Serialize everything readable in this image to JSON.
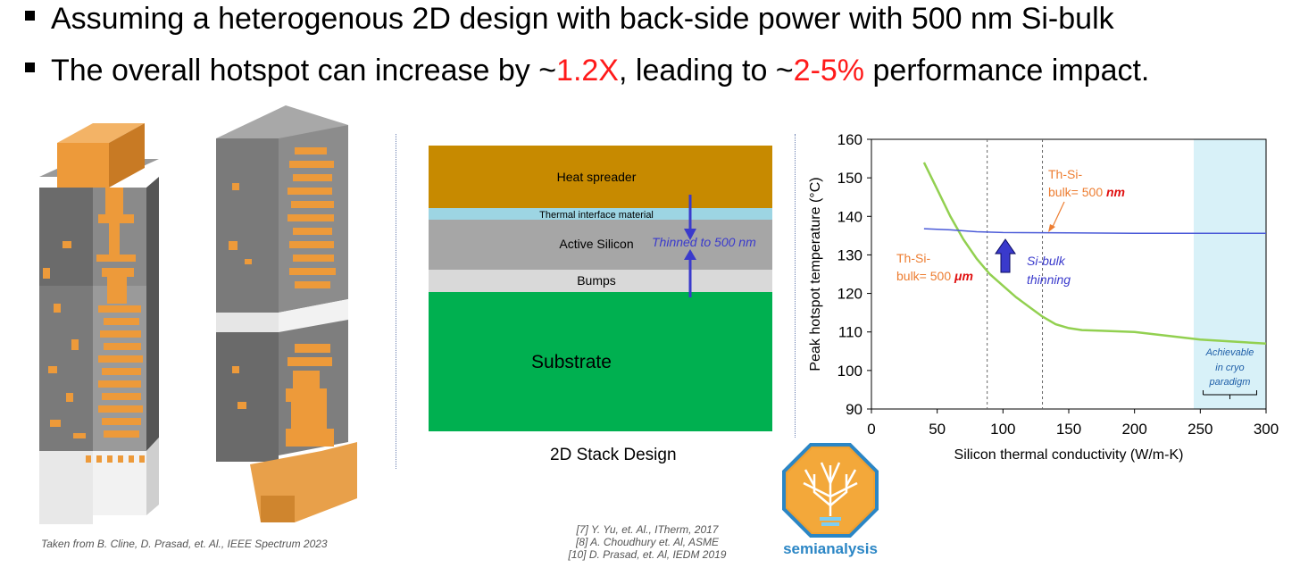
{
  "bullets": {
    "b1": "Assuming a heterogenous 2D design with back-side power with 500 nm Si-bulk",
    "b2_pre": "The overall hotspot can increase by ~",
    "b2_v1": "1.2X",
    "b2_mid": ", leading to ~",
    "b2_v2": "2-5%",
    "b2_post": " performance impact."
  },
  "left_figure": {
    "caption": "Taken from B. Cline, D. Prasad, et. Al., IEEE Spectrum 2023"
  },
  "stack": {
    "layers": {
      "heat_spreader": "Heat spreader",
      "tim": "Thermal interface material",
      "active_silicon": "Active Silicon",
      "bumps": "Bumps",
      "substrate": "Substrate"
    },
    "thinned_label": "Thinned to 500 nm",
    "caption": "2D Stack Design"
  },
  "references": [
    "[7] Y. Yu, et. Al., ITherm, 2017",
    "[8] A. Choudhury et. Al, ASME",
    "[10] D. Prasad, et. Al, IEDM 2019"
  ],
  "logo": {
    "text": "semianalysis"
  },
  "colors": {
    "accent_red": "#ff1a1a",
    "orange": "#ed7d31",
    "blue_annot": "#3a3acc",
    "green_curve": "#92d050",
    "blue_curve": "#4a5ad8",
    "cryo_fill": "#d8f1f8"
  },
  "chart_data": {
    "type": "line",
    "xlabel": "Silicon thermal conductivity (W/m-K)",
    "ylabel": "Peak hotspot temperature (°C)",
    "xlim": [
      0,
      300
    ],
    "ylim": [
      90,
      160
    ],
    "xticks": [
      0,
      50,
      100,
      150,
      200,
      250,
      300
    ],
    "yticks": [
      90,
      100,
      110,
      120,
      130,
      140,
      150,
      160
    ],
    "series": [
      {
        "color": "#92d050",
        "points": [
          [
            40,
            154
          ],
          [
            50,
            147
          ],
          [
            60,
            140
          ],
          [
            70,
            134
          ],
          [
            80,
            129
          ],
          [
            90,
            125
          ],
          [
            100,
            122
          ],
          [
            110,
            119
          ],
          [
            120,
            116.5
          ],
          [
            130,
            114
          ],
          [
            140,
            112
          ],
          [
            150,
            111
          ],
          [
            160,
            110.5
          ],
          [
            175,
            110.3
          ],
          [
            200,
            110
          ],
          [
            225,
            109
          ],
          [
            250,
            108
          ],
          [
            275,
            107.5
          ],
          [
            300,
            107
          ]
        ]
      },
      {
        "color": "#4a5ad8",
        "points": [
          [
            40,
            136.8
          ],
          [
            60,
            136.5
          ],
          [
            80,
            136
          ],
          [
            100,
            135.8
          ],
          [
            150,
            135.7
          ],
          [
            200,
            135.6
          ],
          [
            250,
            135.6
          ],
          [
            300,
            135.6
          ]
        ]
      }
    ],
    "vlines": [
      88,
      130
    ],
    "cryo_region": [
      245,
      300
    ],
    "annotations": {
      "thin_label_prefix": "Th-Si-",
      "thin_label_bulk": "bulk= 500 ",
      "thin_label_unit": "nm",
      "thick_label_prefix": "Th-Si-",
      "thick_label_bulk": "bulk= 500 ",
      "thick_label_unit": "μm",
      "thinning_line1": "Si-bulk",
      "thinning_line2": "thinning",
      "cryo_line1": "Achievable",
      "cryo_line2": "in cryo",
      "cryo_line3": "paradigm"
    }
  }
}
